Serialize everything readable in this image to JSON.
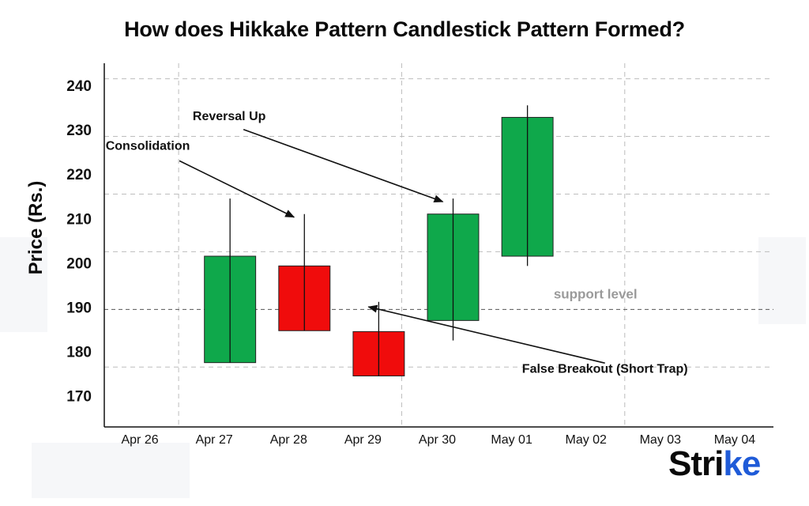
{
  "chart_data": {
    "type": "candlestick",
    "title": "How does Hikkake Pattern Candlestick Pattern Formed?",
    "xlabel": "",
    "ylabel": "Price (Rs.)",
    "ylim": [
      163,
      245
    ],
    "yticks": [
      170,
      180,
      190,
      200,
      210,
      220,
      230,
      240
    ],
    "dashed_levels": [
      176.5,
      189.5,
      202.5,
      215.5,
      228.5,
      241.5
    ],
    "x_ticks": [
      "Apr 26",
      "Apr 27",
      "Apr 28",
      "Apr 29",
      "Apr 30",
      "May 01",
      "May 02",
      "May 03",
      "May 04"
    ],
    "grid": true,
    "candles": [
      {
        "date": "Apr 27",
        "open": 177.5,
        "high": 214.5,
        "low": 177.5,
        "close": 201.5,
        "direction": "up"
      },
      {
        "date": "Apr 28",
        "open": 199.3,
        "high": 211.0,
        "low": 184.7,
        "close": 184.7,
        "direction": "down"
      },
      {
        "date": "Apr 29",
        "open": 184.5,
        "high": 191.2,
        "low": 174.5,
        "close": 174.5,
        "direction": "down"
      },
      {
        "date": "Apr 30",
        "open": 187.0,
        "high": 214.5,
        "low": 182.5,
        "close": 211.0,
        "direction": "up"
      },
      {
        "date": "May 01",
        "open": 201.5,
        "high": 235.5,
        "low": 199.3,
        "close": 232.8,
        "direction": "up"
      }
    ],
    "annotations": [
      {
        "text": "Consolidation",
        "label_x": "Apr 26",
        "label_y": 225.5,
        "arrow_to_date": "Apr 28",
        "arrow_to_price": 211.0
      },
      {
        "text": "Reversal Up",
        "label_x": "Apr 27",
        "label_y": 232.2,
        "arrow_to_date": "Apr 30",
        "arrow_to_price": 214.5
      },
      {
        "text": "False Breakout (Short Trap)",
        "label_x": "May 02",
        "label_y": 176.5,
        "arrow_to_date": "Apr 29",
        "arrow_to_price": 190.8
      },
      {
        "text": "support level",
        "label_x": "May 02",
        "label_y": 192.0
      }
    ],
    "colors": {
      "up": "#0fa84b",
      "down": "#f00c0c",
      "wick": "#111111",
      "grid": "#bdbdbd",
      "support": "#555555"
    }
  },
  "logo": {
    "main": "Stri",
    "accent": "ke"
  }
}
